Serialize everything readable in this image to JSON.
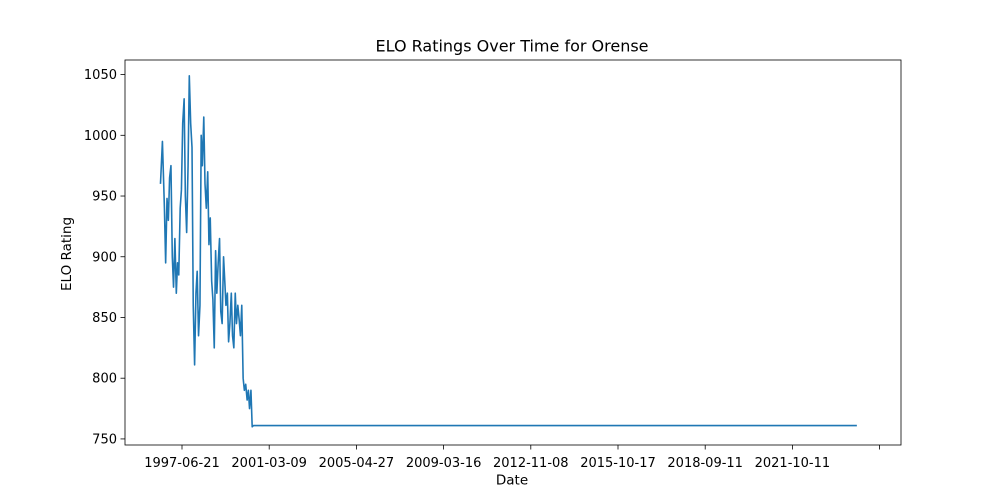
{
  "chart_data": {
    "type": "line",
    "title": "ELO Ratings Over Time for Orense",
    "xlabel": "Date",
    "ylabel": "ELO Rating",
    "x_tick_labels": [
      "1997-06-21",
      "2001-03-09",
      "2005-04-27",
      "2009-03-16",
      "2012-11-08",
      "2015-10-17",
      "2018-09-11",
      "2021-10-11"
    ],
    "y_ticks": [
      750,
      800,
      850,
      900,
      950,
      1000,
      1050
    ],
    "xlim": [
      "1993-11-29",
      "2026-10-15"
    ],
    "ylim": [
      745,
      1062
    ],
    "grid": false,
    "line_color": "#1f77b4",
    "series": [
      {
        "x": [
          "1995-06-01",
          "1995-07-01",
          "1995-08-01",
          "1995-08-20",
          "1995-09-10",
          "1995-10-01",
          "1995-10-20",
          "1995-11-10",
          "1995-12-01",
          "1995-12-20",
          "1996-01-10",
          "1996-02-01",
          "1996-02-20",
          "1996-03-10",
          "1996-04-01",
          "1996-04-20",
          "1996-05-10",
          "1996-06-01",
          "1996-06-20",
          "1996-07-10",
          "1996-08-01",
          "1996-08-20",
          "1996-09-10",
          "1996-10-01",
          "1996-10-20",
          "1996-11-10",
          "1996-12-01",
          "1996-12-20",
          "1997-01-10",
          "1997-02-01",
          "1997-02-20",
          "1997-03-10",
          "1997-04-01",
          "1997-04-20",
          "1997-05-10",
          "1997-06-01",
          "1997-06-20",
          "1997-07-10",
          "1997-08-01",
          "1997-08-20",
          "1997-09-10",
          "1997-10-01",
          "1997-10-20",
          "1997-11-10",
          "1997-12-01",
          "1997-12-20",
          "1998-01-10",
          "1998-02-01",
          "1998-02-20",
          "1998-03-10",
          "1998-04-01",
          "1998-04-20",
          "1998-05-10",
          "1998-06-01",
          "1998-06-20",
          "1998-07-10",
          "1998-08-01",
          "1998-08-20",
          "1998-09-10",
          "1998-10-01",
          "1998-10-20",
          "1998-11-10",
          "1998-12-01",
          "1998-12-20",
          "1999-01-10",
          "1999-02-01",
          "1999-02-20",
          "1999-03-10",
          "1999-04-01",
          "1999-04-20",
          "1999-05-10",
          "1999-06-01",
          "1999-07-01",
          "2024-12-01"
        ],
        "y": [
          960,
          995,
          940,
          895,
          948,
          930,
          965,
          975,
          900,
          875,
          915,
          870,
          895,
          885,
          940,
          955,
          1010,
          1030,
          950,
          920,
          975,
          1049,
          1010,
          990,
          860,
          811,
          870,
          888,
          835,
          860,
          1000,
          975,
          1015,
          960,
          940,
          970,
          910,
          932,
          880,
          865,
          825,
          905,
          870,
          895,
          915,
          855,
          845,
          900,
          880,
          860,
          870,
          830,
          845,
          870,
          835,
          825,
          870,
          845,
          860,
          848,
          835,
          860,
          800,
          790,
          795,
          782,
          790,
          775,
          790,
          760,
          761,
          761,
          761,
          761
        ]
      }
    ]
  }
}
